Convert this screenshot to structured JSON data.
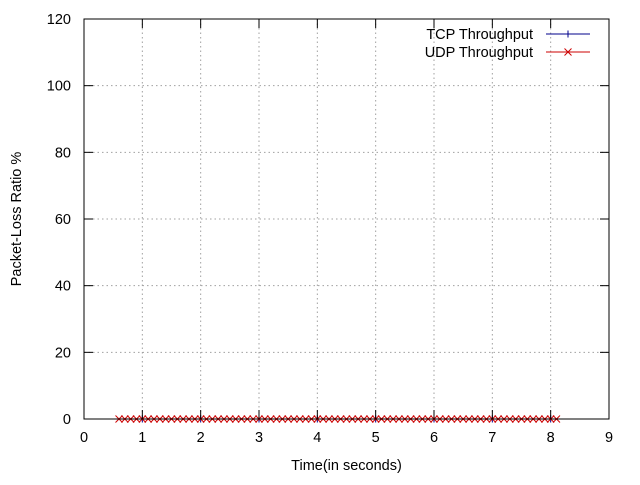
{
  "chart_data": {
    "type": "line",
    "title": "",
    "xlabel": "Time(in seconds)",
    "ylabel": "Packet-Loss Ratio %",
    "xlim": [
      0,
      9
    ],
    "ylim": [
      0,
      120
    ],
    "x_ticks": [
      0,
      1,
      2,
      3,
      4,
      5,
      6,
      7,
      8,
      9
    ],
    "y_ticks": [
      0,
      20,
      40,
      60,
      80,
      100,
      120
    ],
    "grid": true,
    "legend_position": "top-right",
    "series": [
      {
        "name": "TCP Throughput",
        "color": "#00008b",
        "marker": "plus",
        "x": [
          1,
          2,
          3,
          4,
          5,
          6,
          7,
          8
        ],
        "y": [
          0,
          0,
          0,
          0,
          0,
          0,
          0,
          0
        ]
      },
      {
        "name": "UDP Throughput",
        "color": "#cc0000",
        "marker": "cross",
        "x": [
          0.6,
          0.7,
          0.8,
          0.9,
          1.0,
          1.1,
          1.2,
          1.3,
          1.4,
          1.5,
          1.6,
          1.7,
          1.8,
          1.9,
          2.0,
          2.1,
          2.2,
          2.3,
          2.4,
          2.5,
          2.6,
          2.7,
          2.8,
          2.9,
          3.0,
          3.1,
          3.2,
          3.3,
          3.4,
          3.5,
          3.6,
          3.7,
          3.8,
          3.9,
          4.0,
          4.1,
          4.2,
          4.3,
          4.4,
          4.5,
          4.6,
          4.7,
          4.8,
          4.9,
          5.0,
          5.1,
          5.2,
          5.3,
          5.4,
          5.5,
          5.6,
          5.7,
          5.8,
          5.9,
          6.0,
          6.1,
          6.2,
          6.3,
          6.4,
          6.5,
          6.6,
          6.7,
          6.8,
          6.9,
          7.0,
          7.1,
          7.2,
          7.3,
          7.4,
          7.5,
          7.6,
          7.7,
          7.8,
          7.9,
          8.0,
          8.1
        ],
        "y": [
          0,
          0,
          0,
          0,
          0,
          0,
          0,
          0,
          0,
          0,
          0,
          0,
          0,
          0,
          0,
          0,
          0,
          0,
          0,
          0,
          0,
          0,
          0,
          0,
          0,
          0,
          0,
          0,
          0,
          0,
          0,
          0,
          0,
          0,
          0,
          0,
          0,
          0,
          0,
          0,
          0,
          0,
          0,
          0,
          0,
          0,
          0,
          0,
          0,
          0,
          0,
          0,
          0,
          0,
          0,
          0,
          0,
          0,
          0,
          0,
          0,
          0,
          0,
          0,
          0,
          0,
          0,
          0,
          0,
          0,
          0,
          0,
          0,
          0,
          0,
          0
        ]
      }
    ]
  }
}
